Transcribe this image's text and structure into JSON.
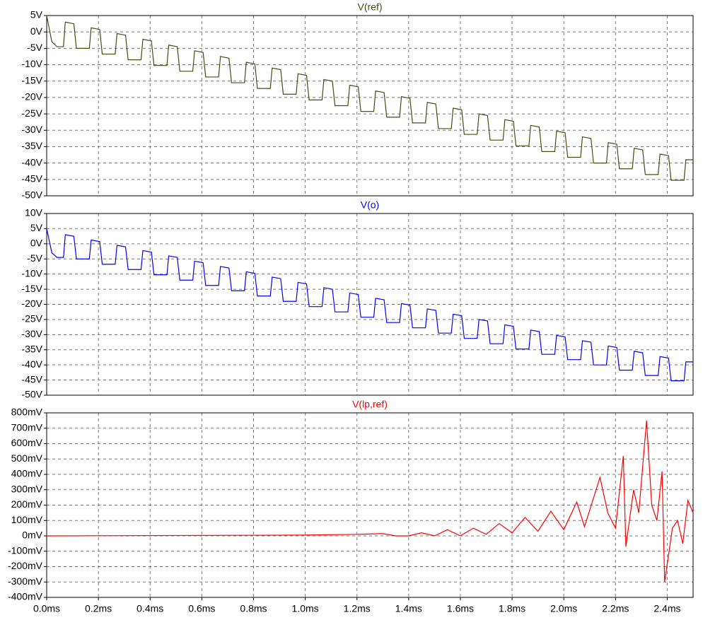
{
  "x_axis": {
    "xlim": [
      0,
      2.5
    ],
    "xticks": [
      {
        "value": 0,
        "label": "0.0ms"
      },
      {
        "value": 0.2,
        "label": "0.2ms"
      },
      {
        "value": 0.4,
        "label": "0.4ms"
      },
      {
        "value": 0.6,
        "label": "0.6ms"
      },
      {
        "value": 0.8,
        "label": "0.8ms"
      },
      {
        "value": 1.0,
        "label": "1.0ms"
      },
      {
        "value": 1.2,
        "label": "1.2ms"
      },
      {
        "value": 1.4,
        "label": "1.4ms"
      },
      {
        "value": 1.6,
        "label": "1.6ms"
      },
      {
        "value": 1.8,
        "label": "1.8ms"
      },
      {
        "value": 2.0,
        "label": "2.0ms"
      },
      {
        "value": 2.2,
        "label": "2.2ms"
      },
      {
        "value": 2.4,
        "label": "2.4ms"
      }
    ],
    "grid": true
  },
  "chart_data": [
    {
      "type": "line",
      "title": "V(ref)",
      "ylim": [
        -50,
        5
      ],
      "grid": true,
      "yticks": [
        {
          "value": 5,
          "label": "5V"
        },
        {
          "value": 0,
          "label": "0V"
        },
        {
          "value": -5,
          "label": "-5V"
        },
        {
          "value": -10,
          "label": "-10V"
        },
        {
          "value": -15,
          "label": "-15V"
        },
        {
          "value": -20,
          "label": "-20V"
        },
        {
          "value": -25,
          "label": "-25V"
        },
        {
          "value": -30,
          "label": "-30V"
        },
        {
          "value": -35,
          "label": "-35V"
        },
        {
          "value": -40,
          "label": "-40V"
        },
        {
          "value": -45,
          "label": "-45V"
        },
        {
          "value": -50,
          "label": "-50V"
        }
      ],
      "series": [
        {
          "name": "V(ref)",
          "color": "#4a4a10",
          "x": [
            0,
            0.02,
            0.04,
            0.065,
            0.072,
            0.105,
            0.115,
            0.165,
            0.172,
            0.205,
            0.215,
            0.265,
            0.272,
            0.305,
            0.315,
            0.365,
            0.372,
            0.405,
            0.415,
            0.465,
            0.472,
            0.505,
            0.515,
            0.565,
            0.572,
            0.605,
            0.615,
            0.665,
            0.672,
            0.705,
            0.715,
            0.765,
            0.772,
            0.805,
            0.815,
            0.865,
            0.872,
            0.905,
            0.915,
            0.965,
            0.972,
            1.005,
            1.015,
            1.065,
            1.072,
            1.105,
            1.115,
            1.165,
            1.172,
            1.205,
            1.215,
            1.265,
            1.272,
            1.305,
            1.315,
            1.365,
            1.372,
            1.405,
            1.415,
            1.465,
            1.472,
            1.505,
            1.515,
            1.565,
            1.572,
            1.605,
            1.615,
            1.665,
            1.672,
            1.705,
            1.715,
            1.765,
            1.772,
            1.805,
            1.815,
            1.865,
            1.872,
            1.905,
            1.915,
            1.965,
            1.972,
            2.005,
            2.015,
            2.065,
            2.072,
            2.105,
            2.115,
            2.165,
            2.172,
            2.205,
            2.215,
            2.265,
            2.272,
            2.305,
            2.315,
            2.365,
            2.372,
            2.405,
            2.415,
            2.465,
            2.472,
            2.5
          ],
          "values": [
            5,
            -3,
            -4.5,
            -4.5,
            3,
            2.5,
            -5,
            -5,
            1.25,
            0.75,
            -6.75,
            -6.75,
            -0.5,
            -1,
            -8.5,
            -8.5,
            -2.25,
            -2.75,
            -10.25,
            -10.25,
            -4,
            -4.5,
            -12,
            -12,
            -5.75,
            -6.25,
            -13.75,
            -13.75,
            -7.5,
            -8,
            -15.5,
            -15.5,
            -9.25,
            -9.75,
            -17.25,
            -17.25,
            -11,
            -11.5,
            -19,
            -19,
            -12.75,
            -13.25,
            -20.75,
            -20.75,
            -14.5,
            -15,
            -22.5,
            -22.5,
            -16.25,
            -16.75,
            -24.25,
            -24.25,
            -18,
            -18.5,
            -26,
            -26,
            -19.75,
            -20.25,
            -27.75,
            -27.75,
            -21.5,
            -22,
            -29.5,
            -29.5,
            -23.25,
            -23.75,
            -31.25,
            -31.25,
            -25,
            -25.5,
            -33,
            -33,
            -26.75,
            -27.25,
            -34.75,
            -34.75,
            -28.5,
            -29,
            -36.5,
            -36.5,
            -30.25,
            -30.75,
            -38.25,
            -38.25,
            -32,
            -32.5,
            -40,
            -40,
            -33.75,
            -34.25,
            -41.75,
            -41.75,
            -35.5,
            -36,
            -43.5,
            -43.5,
            -37.25,
            -37.75,
            -45.25,
            -45.25,
            -39,
            -39
          ]
        }
      ]
    },
    {
      "type": "line",
      "title": "V(o)",
      "ylim": [
        -50,
        10
      ],
      "grid": true,
      "yticks": [
        {
          "value": 10,
          "label": "10V"
        },
        {
          "value": 5,
          "label": "5V"
        },
        {
          "value": 0,
          "label": "0V"
        },
        {
          "value": -5,
          "label": "-5V"
        },
        {
          "value": -10,
          "label": "-10V"
        },
        {
          "value": -15,
          "label": "-15V"
        },
        {
          "value": -20,
          "label": "-20V"
        },
        {
          "value": -25,
          "label": "-25V"
        },
        {
          "value": -30,
          "label": "-30V"
        },
        {
          "value": -35,
          "label": "-35V"
        },
        {
          "value": -40,
          "label": "-40V"
        },
        {
          "value": -45,
          "label": "-45V"
        },
        {
          "value": -50,
          "label": "-50V"
        }
      ],
      "series": [
        {
          "name": "V(o)",
          "color": "#0000ff",
          "x": [
            0,
            0.02,
            0.04,
            0.065,
            0.072,
            0.105,
            0.115,
            0.165,
            0.172,
            0.205,
            0.215,
            0.265,
            0.272,
            0.305,
            0.315,
            0.365,
            0.372,
            0.405,
            0.415,
            0.465,
            0.472,
            0.505,
            0.515,
            0.565,
            0.572,
            0.605,
            0.615,
            0.665,
            0.672,
            0.705,
            0.715,
            0.765,
            0.772,
            0.805,
            0.815,
            0.865,
            0.872,
            0.905,
            0.915,
            0.965,
            0.972,
            1.005,
            1.015,
            1.065,
            1.072,
            1.105,
            1.115,
            1.165,
            1.172,
            1.205,
            1.215,
            1.265,
            1.272,
            1.305,
            1.315,
            1.365,
            1.372,
            1.405,
            1.415,
            1.465,
            1.472,
            1.505,
            1.515,
            1.565,
            1.572,
            1.605,
            1.615,
            1.665,
            1.672,
            1.705,
            1.715,
            1.765,
            1.772,
            1.805,
            1.815,
            1.865,
            1.872,
            1.905,
            1.915,
            1.965,
            1.972,
            2.005,
            2.015,
            2.065,
            2.072,
            2.105,
            2.115,
            2.165,
            2.172,
            2.205,
            2.215,
            2.265,
            2.272,
            2.305,
            2.315,
            2.365,
            2.372,
            2.405,
            2.415,
            2.465,
            2.472,
            2.5
          ],
          "values": [
            5,
            -3,
            -4.5,
            -4.5,
            3,
            2.5,
            -5,
            -5,
            1.25,
            0.75,
            -6.75,
            -6.75,
            -0.5,
            -1,
            -8.5,
            -8.5,
            -2.25,
            -2.75,
            -10.25,
            -10.25,
            -4,
            -4.5,
            -12,
            -12,
            -5.75,
            -6.25,
            -13.75,
            -13.75,
            -7.5,
            -8,
            -15.5,
            -15.5,
            -9.25,
            -9.75,
            -17.25,
            -17.25,
            -11,
            -11.5,
            -19,
            -19,
            -12.75,
            -13.25,
            -20.75,
            -20.75,
            -14.5,
            -15,
            -22.5,
            -22.5,
            -16.25,
            -16.75,
            -24.25,
            -24.25,
            -18,
            -18.5,
            -26,
            -26,
            -19.75,
            -20.25,
            -27.75,
            -27.75,
            -21.5,
            -22,
            -29.5,
            -29.5,
            -23.25,
            -23.75,
            -31.25,
            -31.25,
            -25,
            -25.5,
            -33,
            -33,
            -26.75,
            -27.25,
            -34.75,
            -34.75,
            -28.5,
            -29,
            -36.5,
            -36.5,
            -30.25,
            -30.75,
            -38.25,
            -38.25,
            -32,
            -32.5,
            -40,
            -40,
            -33.75,
            -34.25,
            -41.75,
            -41.75,
            -35.5,
            -36,
            -43.5,
            -43.5,
            -37.25,
            -37.75,
            -45.25,
            -45.25,
            -39,
            -39
          ]
        }
      ]
    },
    {
      "type": "line",
      "title": "V(lp,ref)",
      "ylim": [
        -400,
        800
      ],
      "grid": true,
      "yticks": [
        {
          "value": 800,
          "label": "800mV"
        },
        {
          "value": 700,
          "label": "700mV"
        },
        {
          "value": 600,
          "label": "600mV"
        },
        {
          "value": 500,
          "label": "500mV"
        },
        {
          "value": 400,
          "label": "400mV"
        },
        {
          "value": 300,
          "label": "300mV"
        },
        {
          "value": 200,
          "label": "200mV"
        },
        {
          "value": 100,
          "label": "100mV"
        },
        {
          "value": 0,
          "label": "0mV"
        },
        {
          "value": -100,
          "label": "-100mV"
        },
        {
          "value": -200,
          "label": "-200mV"
        },
        {
          "value": -300,
          "label": "-300mV"
        },
        {
          "value": -400,
          "label": "-400mV"
        }
      ],
      "series": [
        {
          "name": "V(lp,ref)",
          "color": "#ff0000",
          "x": [
            0,
            1.0,
            1.2,
            1.3,
            1.35,
            1.4,
            1.45,
            1.5,
            1.55,
            1.6,
            1.65,
            1.7,
            1.75,
            1.8,
            1.85,
            1.9,
            1.95,
            2.0,
            2.05,
            2.08,
            2.14,
            2.17,
            2.2,
            2.23,
            2.24,
            2.27,
            2.29,
            2.32,
            2.34,
            2.36,
            2.38,
            2.39,
            2.42,
            2.44,
            2.46,
            2.48,
            2.5
          ],
          "values": [
            0,
            5,
            10,
            15,
            0,
            0,
            20,
            0,
            40,
            0,
            50,
            10,
            80,
            20,
            120,
            30,
            160,
            40,
            220,
            60,
            380,
            150,
            50,
            520,
            -70,
            300,
            150,
            750,
            200,
            100,
            420,
            -300,
            50,
            100,
            -50,
            230,
            150
          ]
        }
      ]
    }
  ]
}
